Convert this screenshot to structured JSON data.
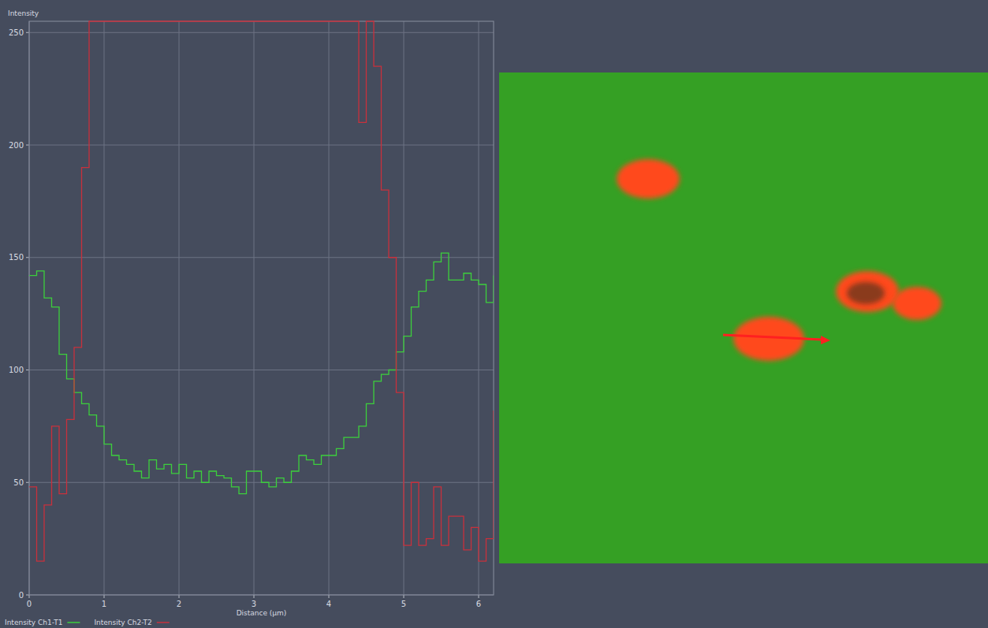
{
  "chart_data": {
    "type": "line",
    "line_style": "step",
    "ylabel": "Intensity",
    "xlabel": "Distance (µm)",
    "x": [
      0,
      0.1,
      0.2,
      0.3,
      0.4,
      0.5,
      0.6,
      0.7,
      0.8,
      0.9,
      1.0,
      1.1,
      1.2,
      1.3,
      1.4,
      1.5,
      1.6,
      1.7,
      1.8,
      1.9,
      2.0,
      2.1,
      2.2,
      2.3,
      2.4,
      2.5,
      2.6,
      2.7,
      2.8,
      2.9,
      3.0,
      3.1,
      3.2,
      3.3,
      3.4,
      3.5,
      3.6,
      3.7,
      3.8,
      3.9,
      4.0,
      4.1,
      4.2,
      4.3,
      4.4,
      4.5,
      4.6,
      4.7,
      4.8,
      4.9,
      5.0,
      5.1,
      5.2,
      5.3,
      5.4,
      5.5,
      5.6,
      5.7,
      5.8,
      5.9,
      6.0,
      6.1,
      6.2
    ],
    "series": [
      {
        "name": "Intensity Ch1-T1",
        "color": "#3ccf3c",
        "values": [
          142,
          144,
          132,
          128,
          107,
          96,
          90,
          85,
          80,
          75,
          67,
          62,
          60,
          58,
          55,
          52,
          60,
          56,
          58,
          54,
          58,
          52,
          55,
          50,
          55,
          53,
          52,
          48,
          45,
          55,
          55,
          50,
          48,
          52,
          50,
          55,
          62,
          60,
          58,
          62,
          62,
          65,
          70,
          70,
          75,
          85,
          95,
          98,
          100,
          108,
          115,
          128,
          135,
          140,
          148,
          152,
          140,
          140,
          143,
          140,
          138,
          130,
          142
        ]
      },
      {
        "name": "Intensity Ch2-T2",
        "color": "#c8303c",
        "values": [
          48,
          15,
          40,
          75,
          45,
          78,
          110,
          190,
          255,
          255,
          255,
          255,
          255,
          255,
          255,
          255,
          255,
          255,
          255,
          255,
          255,
          255,
          255,
          255,
          255,
          255,
          255,
          255,
          255,
          255,
          255,
          255,
          255,
          255,
          255,
          255,
          255,
          255,
          255,
          255,
          255,
          255,
          255,
          255,
          210,
          255,
          235,
          180,
          150,
          90,
          22,
          50,
          22,
          25,
          48,
          22,
          35,
          35,
          20,
          30,
          15,
          25,
          82
        ]
      }
    ],
    "xlim": [
      0,
      6.2
    ],
    "xticks": [
      0,
      1,
      2,
      3,
      4,
      5,
      6
    ],
    "ylim": [
      0,
      255
    ],
    "yticks": [
      0,
      50,
      100,
      150,
      200,
      250
    ],
    "grid": true,
    "legend": "bottom-left"
  }
}
